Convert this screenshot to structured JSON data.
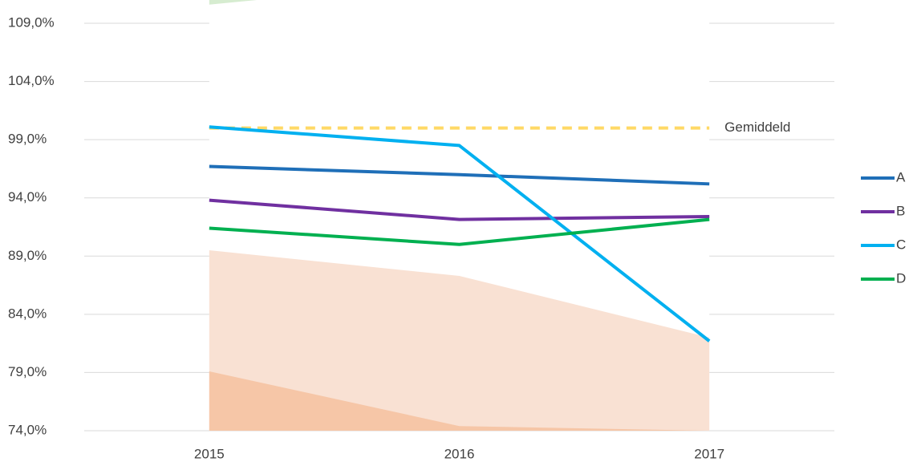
{
  "chart_data": {
    "type": "line",
    "categories": [
      "2015",
      "2016",
      "2017"
    ],
    "ylim": [
      74,
      111
    ],
    "yticks": [
      {
        "value": 74,
        "label": "74,0%"
      },
      {
        "value": 79,
        "label": "79,0%"
      },
      {
        "value": 84,
        "label": "84,0%"
      },
      {
        "value": 89,
        "label": "89,0%"
      },
      {
        "value": 94,
        "label": "94,0%"
      },
      {
        "value": 99,
        "label": "99,0%"
      },
      {
        "value": 104,
        "label": "104,0%"
      },
      {
        "value": 109,
        "label": "109,0%"
      }
    ],
    "grid": true,
    "legend": "right",
    "areas": [
      {
        "color": "#f9e1d3",
        "fill": "below",
        "values": [
          89.5,
          87.3,
          82.0
        ]
      },
      {
        "color": "#f6c6a7",
        "fill": "below",
        "values": [
          79.1,
          74.4,
          74.0
        ]
      },
      {
        "color": "#d6ecd0",
        "fill": "above",
        "values": [
          110.6,
          112.7,
          114.8
        ]
      }
    ],
    "reference": {
      "name": "Gemiddeld",
      "color": "#ffd966",
      "dashed": true,
      "values": [
        100.0,
        100.0,
        100.0
      ]
    },
    "series": [
      {
        "name": "A",
        "color": "#1f6fb8",
        "values": [
          96.7,
          96.0,
          95.2
        ]
      },
      {
        "name": "B",
        "color": "#7030a0",
        "values": [
          93.8,
          92.15,
          92.4
        ]
      },
      {
        "name": "C",
        "color": "#00b0f0",
        "values": [
          100.1,
          98.5,
          81.7
        ]
      },
      {
        "name": "D",
        "color": "#00b050",
        "values": [
          91.4,
          90.0,
          92.15
        ]
      }
    ]
  }
}
